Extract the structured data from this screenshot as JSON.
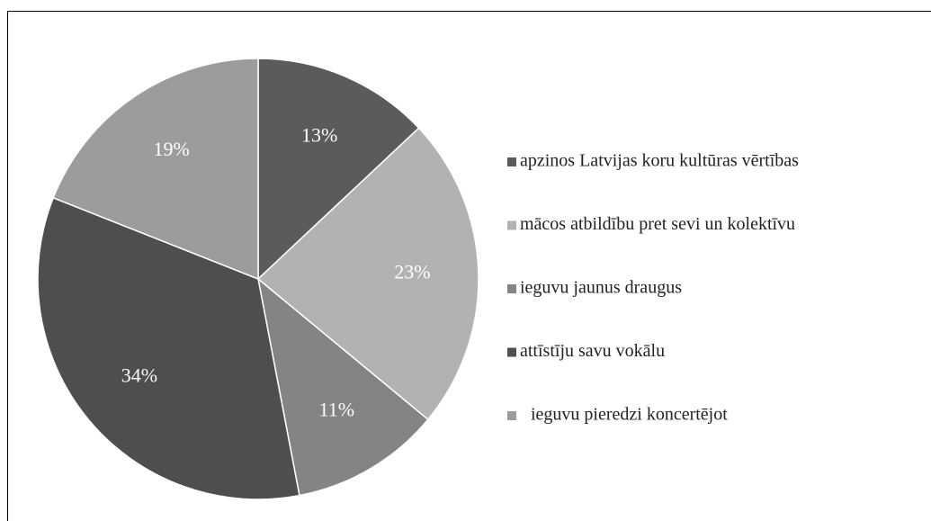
{
  "chart_data": {
    "type": "pie",
    "categories": [
      "apzinos Latvijas koru kultūras vērtības",
      "mācos atbildību pret sevi un kolektīvu",
      "ieguvu jaunus draugus",
      "attīstīju savu vokālu",
      "ieguvu pieredzi koncertējot"
    ],
    "values": [
      13,
      23,
      11,
      34,
      19
    ],
    "value_labels": [
      "13%",
      "23%",
      "11%",
      "34%",
      "19%"
    ],
    "colors": [
      "#5b5b5b",
      "#b2b2b2",
      "#848484",
      "#4e4e4e",
      "#9c9c9c"
    ],
    "legend": "right"
  }
}
